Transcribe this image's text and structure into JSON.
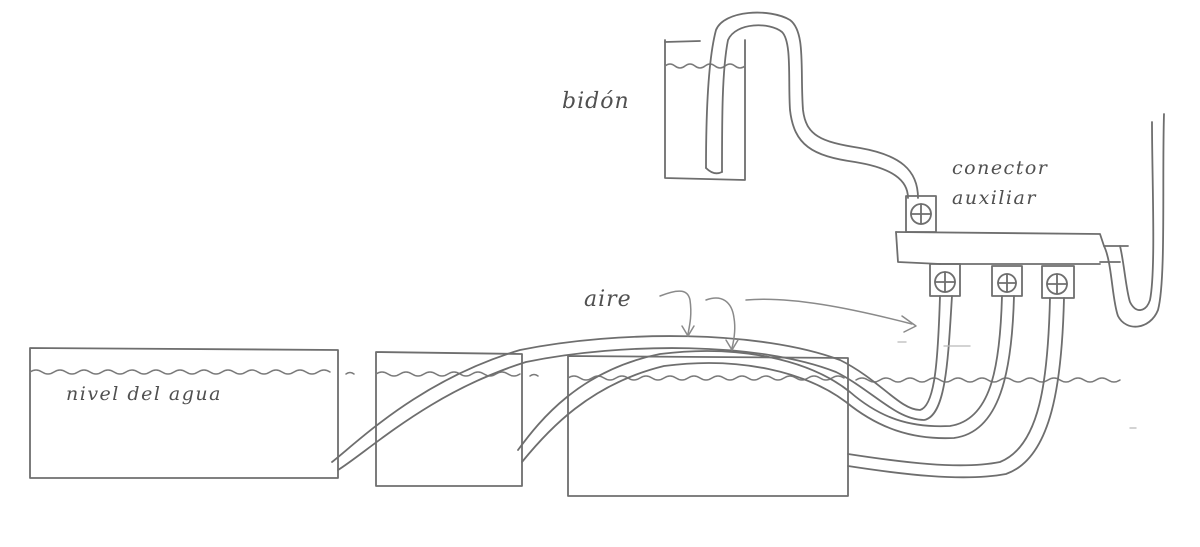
{
  "labels": {
    "bidon": "bidón",
    "conector_line1": "conector",
    "conector_line2": "auxiliar",
    "aire": "aire",
    "nivel": "nivel del agua"
  },
  "colors": {
    "background": "#ffffff",
    "pencil": "#6e6e6e",
    "pencil_light": "#8a8a8a",
    "text": "#505050"
  },
  "icons": [
    "connector-plus-icon"
  ]
}
